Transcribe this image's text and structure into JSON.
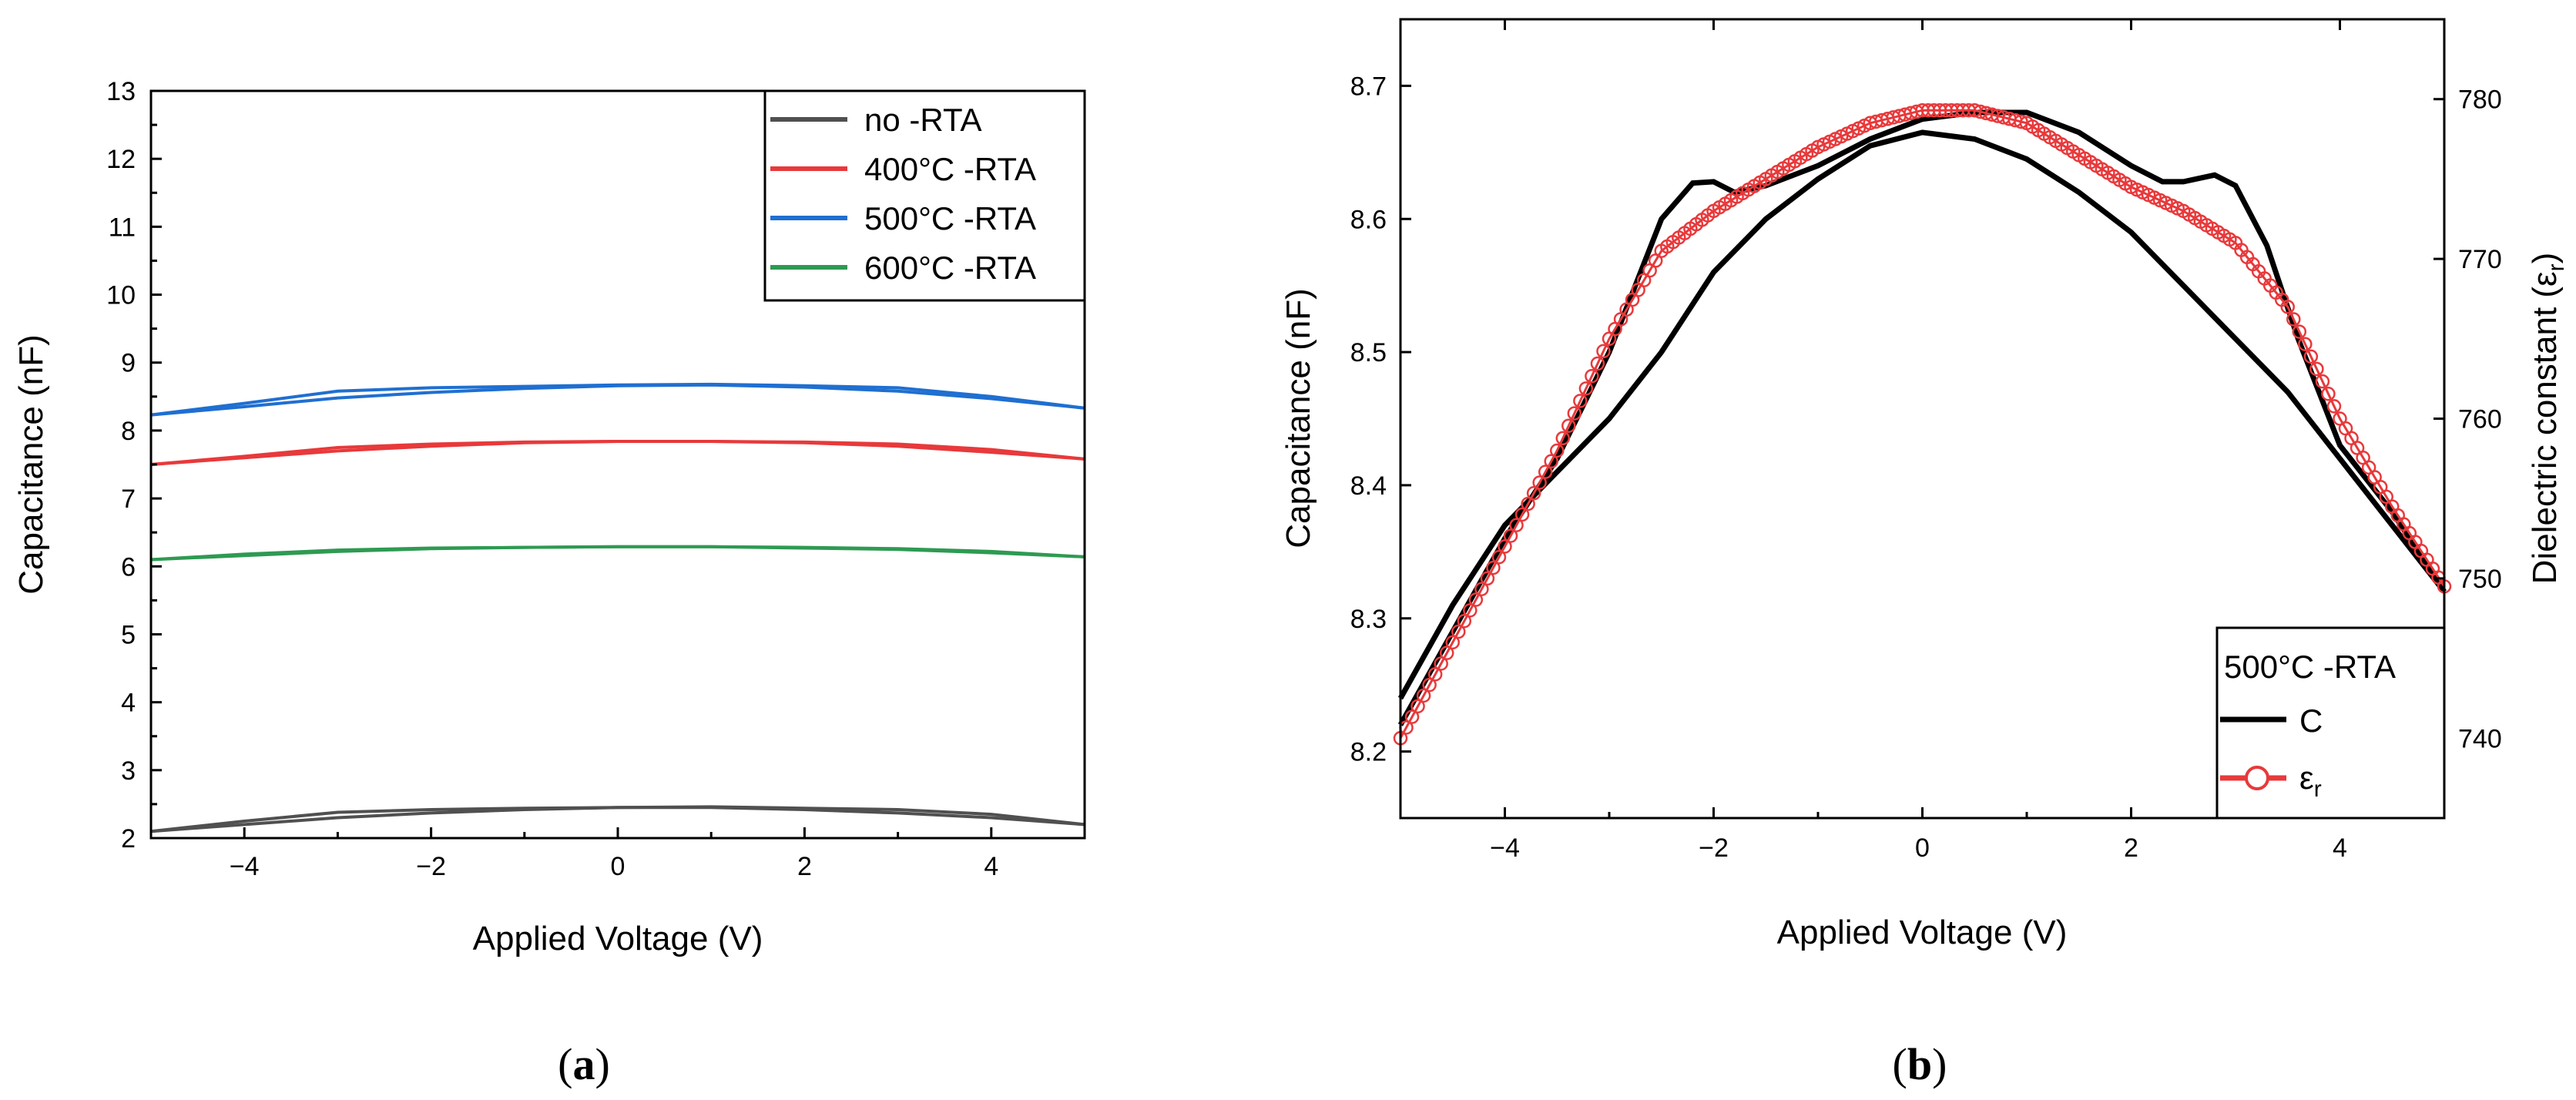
{
  "chart_data": [
    {
      "type": "line",
      "panel_label": "a",
      "title": "",
      "xlabel": "Applied Voltage (V)",
      "ylabel": "Capacitance (nF)",
      "xlim": [
        -5,
        5
      ],
      "ylim": [
        2,
        13
      ],
      "xticks": [
        -4,
        -2,
        0,
        2,
        4
      ],
      "yticks": [
        2,
        3,
        4,
        5,
        6,
        7,
        8,
        9,
        10,
        11,
        12,
        13
      ],
      "legend_position": "top-right",
      "x": [
        -5,
        -4,
        -3,
        -2,
        -1,
        0,
        1,
        2,
        3,
        4,
        5
      ],
      "series": [
        {
          "name": "no -RTA",
          "color": "#505050",
          "forward": [
            2.1,
            2.25,
            2.38,
            2.42,
            2.44,
            2.45,
            2.46,
            2.44,
            2.42,
            2.35,
            2.2
          ],
          "reverse": [
            2.1,
            2.2,
            2.3,
            2.37,
            2.42,
            2.45,
            2.45,
            2.42,
            2.37,
            2.3,
            2.2
          ]
        },
        {
          "name": "400°C -RTA",
          "color": "#e8393b",
          "forward": [
            7.5,
            7.62,
            7.75,
            7.8,
            7.83,
            7.84,
            7.84,
            7.83,
            7.8,
            7.72,
            7.58
          ],
          "reverse": [
            7.5,
            7.6,
            7.7,
            7.77,
            7.82,
            7.84,
            7.84,
            7.82,
            7.77,
            7.68,
            7.58
          ]
        },
        {
          "name": "500°C -RTA",
          "color": "#1f6fd1",
          "forward": [
            8.23,
            8.4,
            8.58,
            8.63,
            8.65,
            8.67,
            8.68,
            8.66,
            8.63,
            8.5,
            8.33
          ],
          "reverse": [
            8.23,
            8.35,
            8.48,
            8.56,
            8.62,
            8.66,
            8.67,
            8.64,
            8.58,
            8.47,
            8.33
          ]
        },
        {
          "name": "600°C -RTA",
          "color": "#2e9a52",
          "forward": [
            6.1,
            6.18,
            6.24,
            6.27,
            6.28,
            6.29,
            6.29,
            6.28,
            6.26,
            6.22,
            6.14
          ],
          "reverse": [
            6.1,
            6.16,
            6.22,
            6.26,
            6.28,
            6.29,
            6.29,
            6.27,
            6.25,
            6.2,
            6.14
          ]
        }
      ]
    },
    {
      "type": "line",
      "panel_label": "b",
      "title": "",
      "xlabel": "Applied Voltage (V)",
      "ylabel": "Capacitance (nF)",
      "y2label": "Dielectric constant (ε",
      "y2label_sub": "r",
      "y2label_close": ")",
      "xlim": [
        -5,
        5
      ],
      "ylim": [
        8.15,
        8.75
      ],
      "y2lim": [
        735,
        785
      ],
      "xticks": [
        -4,
        -2,
        0,
        2,
        4
      ],
      "yticks": [
        8.2,
        8.3,
        8.4,
        8.5,
        8.6,
        8.7
      ],
      "y2ticks": [
        740,
        750,
        760,
        770,
        780
      ],
      "legend_title": "500°C -RTA",
      "legend_position": "bottom-right",
      "series": [
        {
          "name": "C",
          "axis": "left",
          "color": "#000000",
          "marker": "none",
          "x_forward": [
            -5,
            -4.5,
            -4,
            -3.5,
            -3,
            -2.5,
            -2.2,
            -2,
            -1.8,
            -1.5,
            -1,
            -0.5,
            0,
            0.5,
            1,
            1.5,
            2,
            2.3,
            2.5,
            2.8,
            3,
            3.3,
            3.6,
            4,
            4.5,
            5
          ],
          "forward": [
            8.22,
            8.29,
            8.36,
            8.42,
            8.5,
            8.6,
            8.627,
            8.628,
            8.62,
            8.625,
            8.64,
            8.66,
            8.675,
            8.68,
            8.68,
            8.665,
            8.64,
            8.628,
            8.628,
            8.633,
            8.625,
            8.58,
            8.51,
            8.43,
            8.38,
            8.32
          ],
          "x_reverse": [
            5,
            4.5,
            4,
            3.5,
            3,
            2.5,
            2,
            1.5,
            1,
            0.5,
            0,
            -0.5,
            -1,
            -1.5,
            -2,
            -2.5,
            -3,
            -3.5,
            -4,
            -4.5,
            -5
          ],
          "reverse": [
            8.32,
            8.37,
            8.42,
            8.47,
            8.51,
            8.55,
            8.59,
            8.62,
            8.645,
            8.66,
            8.665,
            8.655,
            8.63,
            8.6,
            8.56,
            8.5,
            8.45,
            8.41,
            8.37,
            8.31,
            8.24
          ]
        },
        {
          "name": "ε",
          "name_sub": "r",
          "axis": "right",
          "color": "#e8393b",
          "marker": "circle-open",
          "x": [
            -5,
            -4.5,
            -4,
            -3.5,
            -3,
            -2.5,
            -2,
            -1.5,
            -1,
            -0.5,
            0,
            0.5,
            1,
            1.5,
            2,
            2.5,
            3,
            3.5,
            4,
            4.5,
            5
          ],
          "values": [
            740,
            746,
            752,
            758,
            765,
            770.5,
            773,
            775,
            777,
            778.5,
            779.3,
            779.3,
            778.5,
            776.5,
            774.5,
            773,
            771,
            767,
            760,
            754.5,
            749.5
          ]
        }
      ]
    }
  ],
  "captions": {
    "a": "(a)",
    "b": "(b)"
  }
}
